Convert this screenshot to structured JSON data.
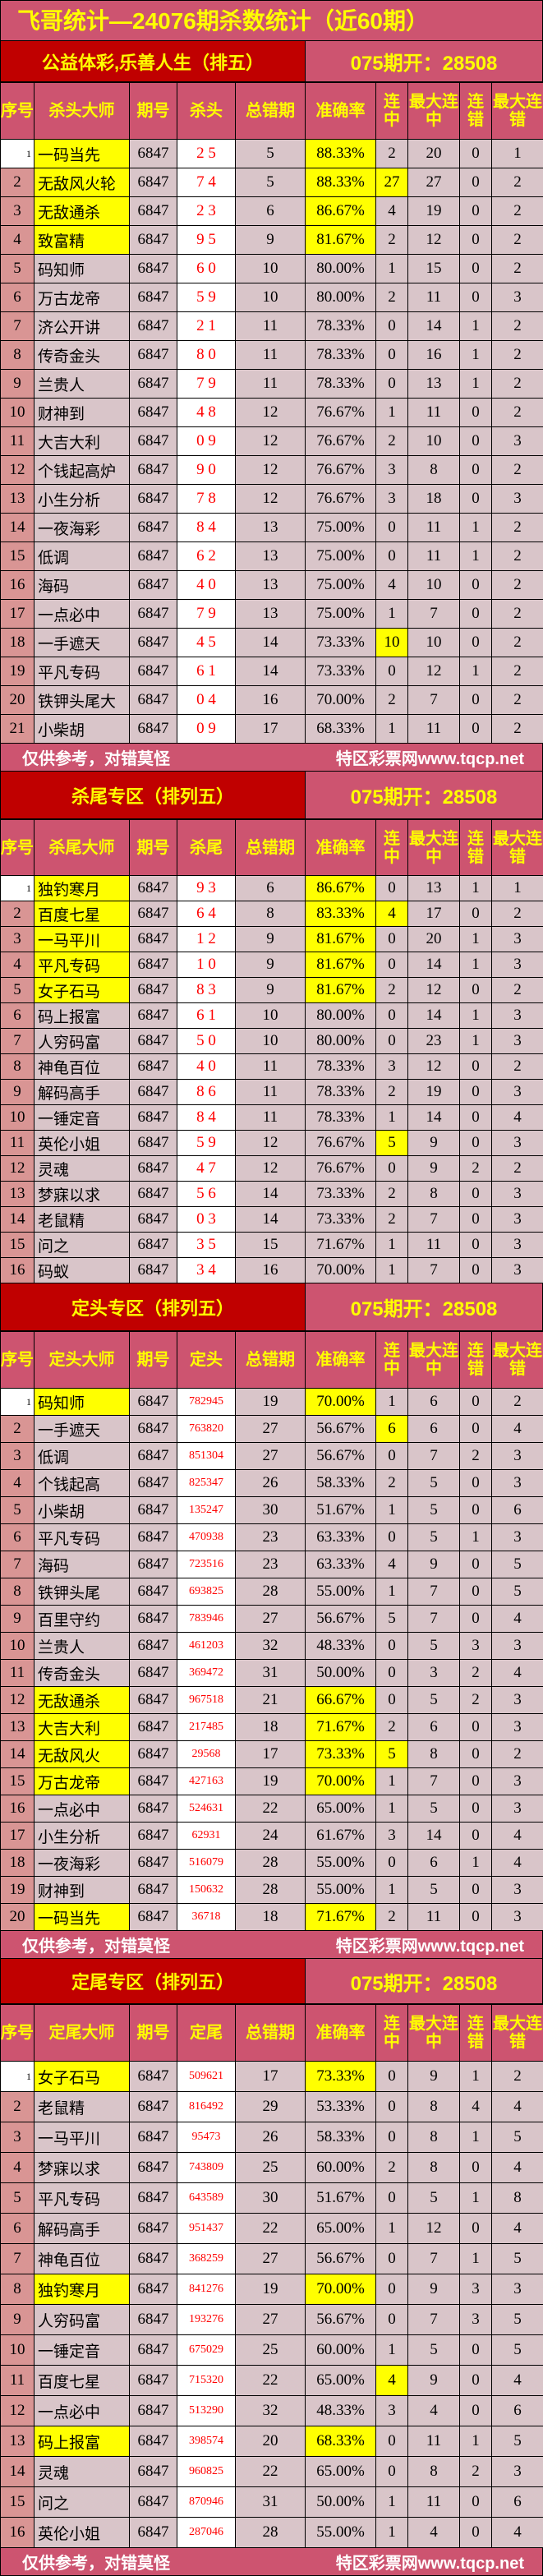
{
  "title": "飞哥统计—24076期杀数统计（近60期）",
  "footer": {
    "left": "仅供参考，对错莫怪",
    "right": "特区彩票网www.tqcp.net"
  },
  "colors": {
    "title_bg": "#cd5470",
    "section_bg": "#c00000",
    "title_text": "#ffff00",
    "highlight": "#ffff00",
    "kill_text": "#ff0000"
  },
  "sections": [
    {
      "label": "公益体彩,乐善人生（排五）",
      "open": "075期开：28508",
      "headers": [
        "序号",
        "杀头大师",
        "期号",
        "杀头",
        "总错期",
        "准确率",
        "连中",
        "最大连中",
        "连错",
        "最大连错"
      ],
      "hl_rows": [
        1,
        2,
        3,
        4
      ],
      "hl_streak": [
        2,
        18
      ],
      "footer": true,
      "rows": [
        [
          1,
          "一码当先",
          "6847",
          "2 5",
          5,
          "88.33%",
          2,
          20,
          0,
          1
        ],
        [
          2,
          "无敌风火轮",
          "6847",
          "7 4",
          5,
          "88.33%",
          27,
          27,
          0,
          2
        ],
        [
          3,
          "无敌通杀",
          "6847",
          "2 3",
          6,
          "86.67%",
          4,
          19,
          0,
          2
        ],
        [
          4,
          "致富精",
          "6847",
          "9 5",
          9,
          "81.67%",
          2,
          12,
          0,
          2
        ],
        [
          5,
          "码知师",
          "6847",
          "6 0",
          10,
          "80.00%",
          1,
          15,
          0,
          2
        ],
        [
          6,
          "万古龙帝",
          "6847",
          "5 9",
          10,
          "80.00%",
          2,
          11,
          0,
          3
        ],
        [
          7,
          "济公开讲",
          "6847",
          "2 1",
          11,
          "78.33%",
          0,
          14,
          1,
          2
        ],
        [
          8,
          "传奇金头",
          "6847",
          "8 0",
          11,
          "78.33%",
          0,
          16,
          1,
          2
        ],
        [
          9,
          "兰贵人",
          "6847",
          "7 9",
          11,
          "78.33%",
          0,
          13,
          1,
          2
        ],
        [
          10,
          "财神到",
          "6847",
          "4 8",
          12,
          "76.67%",
          1,
          11,
          0,
          2
        ],
        [
          11,
          "大吉大利",
          "6847",
          "0 9",
          12,
          "76.67%",
          2,
          10,
          0,
          3
        ],
        [
          12,
          "个钱起高炉",
          "6847",
          "9 0",
          12,
          "76.67%",
          3,
          8,
          0,
          2
        ],
        [
          13,
          "小生分析",
          "6847",
          "7 8",
          12,
          "76.67%",
          3,
          18,
          0,
          3
        ],
        [
          14,
          "一夜海彩",
          "6847",
          "8 4",
          13,
          "75.00%",
          0,
          11,
          1,
          2
        ],
        [
          15,
          "低调",
          "6847",
          "6 2",
          13,
          "75.00%",
          0,
          11,
          1,
          2
        ],
        [
          16,
          "海码",
          "6847",
          "4 0",
          13,
          "75.00%",
          4,
          10,
          0,
          2
        ],
        [
          17,
          "一点必中",
          "6847",
          "7 9",
          13,
          "75.00%",
          1,
          7,
          0,
          2
        ],
        [
          18,
          "一手遮天",
          "6847",
          "4 5",
          14,
          "73.33%",
          10,
          10,
          0,
          2
        ],
        [
          19,
          "平凡专码",
          "6847",
          "6 1",
          14,
          "73.33%",
          0,
          12,
          1,
          2
        ],
        [
          20,
          "铁钾头尾大",
          "6847",
          "0 4",
          16,
          "70.00%",
          2,
          7,
          0,
          2
        ],
        [
          21,
          "小柴胡",
          "6847",
          "0 9",
          17,
          "68.33%",
          1,
          11,
          0,
          2
        ]
      ]
    },
    {
      "label": "杀尾专区（排列五）",
      "open": "075期开：28508",
      "headers": [
        "序号",
        "杀尾大师",
        "期号",
        "杀尾",
        "总错期",
        "准确率",
        "连中",
        "最大连中",
        "连错",
        "最大连错"
      ],
      "hl_rows": [
        1,
        2,
        3,
        4,
        5
      ],
      "hl_streak": [
        2,
        11
      ],
      "footer": false,
      "rows": [
        [
          1,
          "独钓寒月",
          "6847",
          "9 3",
          6,
          "86.67%",
          0,
          13,
          1,
          1
        ],
        [
          2,
          "百度七星",
          "6847",
          "6 4",
          8,
          "83.33%",
          4,
          17,
          0,
          2
        ],
        [
          3,
          "一马平川",
          "6847",
          "1 2",
          9,
          "81.67%",
          0,
          20,
          1,
          3
        ],
        [
          4,
          "平凡专码",
          "6847",
          "1 0",
          9,
          "81.67%",
          0,
          14,
          1,
          3
        ],
        [
          5,
          "女子石马",
          "6847",
          "8 3",
          9,
          "81.67%",
          2,
          12,
          0,
          2
        ],
        [
          6,
          "码上报富",
          "6847",
          "6 1",
          10,
          "80.00%",
          0,
          14,
          1,
          3
        ],
        [
          7,
          "人穷码富",
          "6847",
          "5 0",
          10,
          "80.00%",
          0,
          23,
          1,
          3
        ],
        [
          8,
          "神龟百位",
          "6847",
          "4 0",
          11,
          "78.33%",
          3,
          12,
          0,
          2
        ],
        [
          9,
          "解码高手",
          "6847",
          "8 6",
          11,
          "78.33%",
          2,
          19,
          0,
          3
        ],
        [
          10,
          "一锤定音",
          "6847",
          "8 4",
          11,
          "78.33%",
          1,
          14,
          0,
          4
        ],
        [
          11,
          "英伦小姐",
          "6847",
          "5 9",
          12,
          "76.67%",
          5,
          9,
          0,
          3
        ],
        [
          12,
          "灵魂",
          "6847",
          "4 7",
          12,
          "76.67%",
          0,
          9,
          2,
          2
        ],
        [
          13,
          "梦寐以求",
          "6847",
          "5 6",
          14,
          "73.33%",
          2,
          8,
          0,
          3
        ],
        [
          14,
          "老鼠精",
          "6847",
          "0 3",
          14,
          "73.33%",
          2,
          7,
          0,
          3
        ],
        [
          15,
          "问之",
          "6847",
          "3 5",
          15,
          "71.67%",
          1,
          11,
          0,
          3
        ],
        [
          16,
          "码蚁",
          "6847",
          "3 4",
          16,
          "70.00%",
          1,
          7,
          0,
          3
        ]
      ]
    },
    {
      "label": "定头专区（排列五）",
      "open": "075期开：28508",
      "headers": [
        "序号",
        "定头大师",
        "期号",
        "定头",
        "总错期",
        "准确率",
        "连中",
        "最大连中",
        "连错",
        "最大连错"
      ],
      "hl_rows": [
        1,
        12,
        13,
        14,
        15,
        20
      ],
      "hl_streak": [
        2,
        14
      ],
      "footer": true,
      "rows": [
        [
          1,
          "码知师",
          "6847",
          "782945",
          19,
          "70.00%",
          1,
          6,
          0,
          2
        ],
        [
          2,
          "一手遮天",
          "6847",
          "763820",
          27,
          "56.67%",
          6,
          6,
          0,
          4
        ],
        [
          3,
          "低调",
          "6847",
          "851304",
          27,
          "56.67%",
          0,
          7,
          2,
          3
        ],
        [
          4,
          "个钱起高",
          "6847",
          "825347",
          26,
          "58.33%",
          2,
          5,
          0,
          3
        ],
        [
          5,
          "小柴胡",
          "6847",
          "135247",
          30,
          "51.67%",
          1,
          5,
          0,
          6
        ],
        [
          6,
          "平凡专码",
          "6847",
          "470938",
          23,
          "63.33%",
          0,
          5,
          1,
          3
        ],
        [
          7,
          "海码",
          "6847",
          "723516",
          23,
          "63.33%",
          4,
          9,
          0,
          5
        ],
        [
          8,
          "铁钾头尾",
          "6847",
          "693825",
          28,
          "55.00%",
          1,
          7,
          0,
          5
        ],
        [
          9,
          "百里守约",
          "6847",
          "783946",
          27,
          "56.67%",
          5,
          7,
          0,
          4
        ],
        [
          10,
          "兰贵人",
          "6847",
          "461203",
          32,
          "48.33%",
          0,
          5,
          3,
          3
        ],
        [
          11,
          "传奇金头",
          "6847",
          "369472",
          31,
          "50.00%",
          0,
          3,
          2,
          4
        ],
        [
          12,
          "无敌通杀",
          "6847",
          "967518",
          21,
          "66.67%",
          0,
          5,
          2,
          3
        ],
        [
          13,
          "大吉大利",
          "6847",
          "217485",
          18,
          "71.67%",
          2,
          6,
          0,
          3
        ],
        [
          14,
          "无敌风火",
          "6847",
          "29568",
          17,
          "73.33%",
          5,
          8,
          0,
          2
        ],
        [
          15,
          "万古龙帝",
          "6847",
          "427163",
          19,
          "70.00%",
          1,
          7,
          0,
          3
        ],
        [
          16,
          "一点必中",
          "6847",
          "524631",
          22,
          "65.00%",
          1,
          5,
          0,
          3
        ],
        [
          17,
          "小生分析",
          "6847",
          "62931",
          24,
          "61.67%",
          3,
          14,
          0,
          4
        ],
        [
          18,
          "一夜海彩",
          "6847",
          "516079",
          28,
          "55.00%",
          0,
          6,
          1,
          4
        ],
        [
          19,
          "财神到",
          "6847",
          "150632",
          28,
          "55.00%",
          1,
          5,
          0,
          3
        ],
        [
          20,
          "一码当先",
          "6847",
          "36718",
          18,
          "71.67%",
          2,
          11,
          0,
          3
        ]
      ]
    },
    {
      "label": "定尾专区（排列五）",
      "open": "075期开：28508",
      "headers": [
        "序号",
        "定尾大师",
        "期号",
        "定尾",
        "总错期",
        "准确率",
        "连中",
        "最大连中",
        "连错",
        "最大连错"
      ],
      "hl_rows": [
        1,
        8,
        13
      ],
      "hl_streak": [
        11
      ],
      "footer": true,
      "rows": [
        [
          1,
          "女子石马",
          "6847",
          "509621",
          17,
          "73.33%",
          0,
          9,
          1,
          2
        ],
        [
          2,
          "老鼠精",
          "6847",
          "816492",
          29,
          "53.33%",
          0,
          8,
          4,
          4
        ],
        [
          3,
          "一马平川",
          "6847",
          "95473",
          26,
          "58.33%",
          0,
          8,
          1,
          5
        ],
        [
          4,
          "梦寐以求",
          "6847",
          "743809",
          25,
          "60.00%",
          2,
          8,
          0,
          4
        ],
        [
          5,
          "平凡专码",
          "6847",
          "643589",
          30,
          "51.67%",
          0,
          5,
          1,
          8
        ],
        [
          6,
          "解码高手",
          "6847",
          "951437",
          22,
          "65.00%",
          1,
          12,
          0,
          4
        ],
        [
          7,
          "神龟百位",
          "6847",
          "368259",
          27,
          "56.67%",
          0,
          7,
          1,
          5
        ],
        [
          8,
          "独钓寒月",
          "6847",
          "841276",
          19,
          "70.00%",
          0,
          9,
          3,
          3
        ],
        [
          9,
          "人穷码富",
          "6847",
          "193276",
          27,
          "56.67%",
          0,
          7,
          3,
          5
        ],
        [
          10,
          "一锤定音",
          "6847",
          "675029",
          25,
          "60.00%",
          1,
          5,
          0,
          5
        ],
        [
          11,
          "百度七星",
          "6847",
          "715320",
          22,
          "65.00%",
          4,
          9,
          0,
          4
        ],
        [
          12,
          "一点必中",
          "6847",
          "513290",
          32,
          "48.33%",
          3,
          4,
          0,
          6
        ],
        [
          13,
          "码上报富",
          "6847",
          "398574",
          20,
          "68.33%",
          0,
          11,
          1,
          5
        ],
        [
          14,
          "灵魂",
          "6847",
          "960825",
          22,
          "65.00%",
          0,
          8,
          2,
          3
        ],
        [
          15,
          "问之",
          "6847",
          "870946",
          31,
          "50.00%",
          1,
          11,
          0,
          6
        ],
        [
          16,
          "英伦小姐",
          "6847",
          "287046",
          28,
          "55.00%",
          1,
          4,
          0,
          4
        ]
      ]
    }
  ]
}
